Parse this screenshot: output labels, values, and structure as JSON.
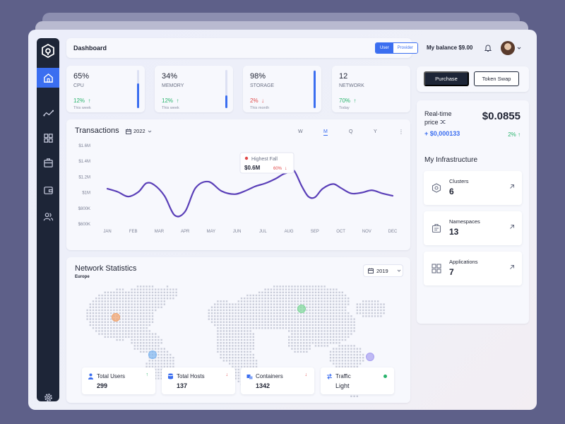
{
  "header": {
    "title": "Dashboard",
    "toggle": [
      "User",
      "Provider"
    ],
    "balance": "My balance  $9.00"
  },
  "stats": [
    {
      "value": "65%",
      "label": "CPU",
      "change": "12%",
      "arrow": "↑",
      "trend": "up",
      "period": "This week",
      "level": 0.65
    },
    {
      "value": "34%",
      "label": "MEMORY",
      "change": "12%",
      "arrow": "↑",
      "trend": "up",
      "period": "This week",
      "level": 0.34
    },
    {
      "value": "98%",
      "label": "STORAGE",
      "change": "2%",
      "arrow": "↓",
      "trend": "down",
      "period": "This month",
      "level": 0.98
    },
    {
      "value": "12",
      "label": "NETWORK",
      "change": "70%",
      "arrow": "↑",
      "trend": "up",
      "period": "Today",
      "level": 0
    }
  ],
  "transactions": {
    "title": "Transactions",
    "year": "2022",
    "tabs": [
      "W",
      "M",
      "Q",
      "Y"
    ],
    "active_tab": "M",
    "tooltip_title": "Highest Fall",
    "tooltip_value": "$0.6M",
    "tooltip_change": "60%"
  },
  "chart_data": {
    "type": "line",
    "title": "Transactions",
    "categories": [
      "JAN",
      "FEB",
      "MAR",
      "APR",
      "MAY",
      "JUN",
      "JUL",
      "AUG",
      "SEP",
      "OCT",
      "NOV",
      "DEC"
    ],
    "yticks": [
      "$1.6M",
      "$1.4M",
      "$1.2M",
      "$1M",
      "$800K",
      "$600K"
    ],
    "ylim": [
      600000,
      1600000
    ],
    "x": [
      0,
      0.4,
      0.8,
      1.2,
      1.5,
      1.8,
      2.2,
      2.6,
      3.0,
      3.4,
      3.9,
      4.4,
      4.9,
      5.3,
      5.7,
      6.1,
      6.5,
      6.75,
      7.0,
      7.2,
      7.5,
      7.75,
      8.0,
      8.3,
      8.7,
      9.0,
      9.4,
      9.8,
      10.2,
      10.6,
      11.0
    ],
    "values": [
      1050000,
      1010000,
      950000,
      1010000,
      1120000,
      1100000,
      960000,
      710000,
      760000,
      1060000,
      1140000,
      1020000,
      980000,
      1020000,
      1080000,
      1120000,
      1180000,
      1230000,
      1260000,
      1280000,
      1080000,
      950000,
      940000,
      1050000,
      1110000,
      1060000,
      990000,
      1000000,
      1030000,
      990000,
      960000
    ],
    "legend": "none",
    "grid": false
  },
  "network": {
    "title": "Network Statistics",
    "region": "Europe",
    "year": "2019",
    "cards": [
      {
        "label": "Total Users",
        "value": "299",
        "arrow": "↑",
        "trend": "up"
      },
      {
        "label": "Total Hosts",
        "value": "137",
        "arrow": "↓",
        "trend": "down"
      },
      {
        "label": "Containers",
        "value": "1342",
        "arrow": "↓",
        "trend": "down"
      },
      {
        "label": "Traffic",
        "value": "Light",
        "trend": "status"
      }
    ],
    "markers": [
      "#f2a36b",
      "#7fb6f0",
      "#7fd99a",
      "#a69ef0"
    ]
  },
  "actions": {
    "purchase": "Purchase",
    "swap": "Token Swap"
  },
  "realtime": {
    "label_line1": "Real-time",
    "label_line2": "price",
    "price": "$0.0855",
    "delta": "+ $0,000133",
    "pct": "2%",
    "pct_arrow": "↑"
  },
  "infrastructure": {
    "title": "My Infrastructure",
    "items": [
      {
        "label": "Clusters",
        "value": "6"
      },
      {
        "label": "Namespaces",
        "value": "13"
      },
      {
        "label": "Applications",
        "value": "7"
      }
    ]
  },
  "colors": {
    "accent": "#3b6ef0",
    "sidebar": "#1d2537",
    "up": "#27b36b",
    "down": "#e04848",
    "line": "#5a3fb8"
  }
}
